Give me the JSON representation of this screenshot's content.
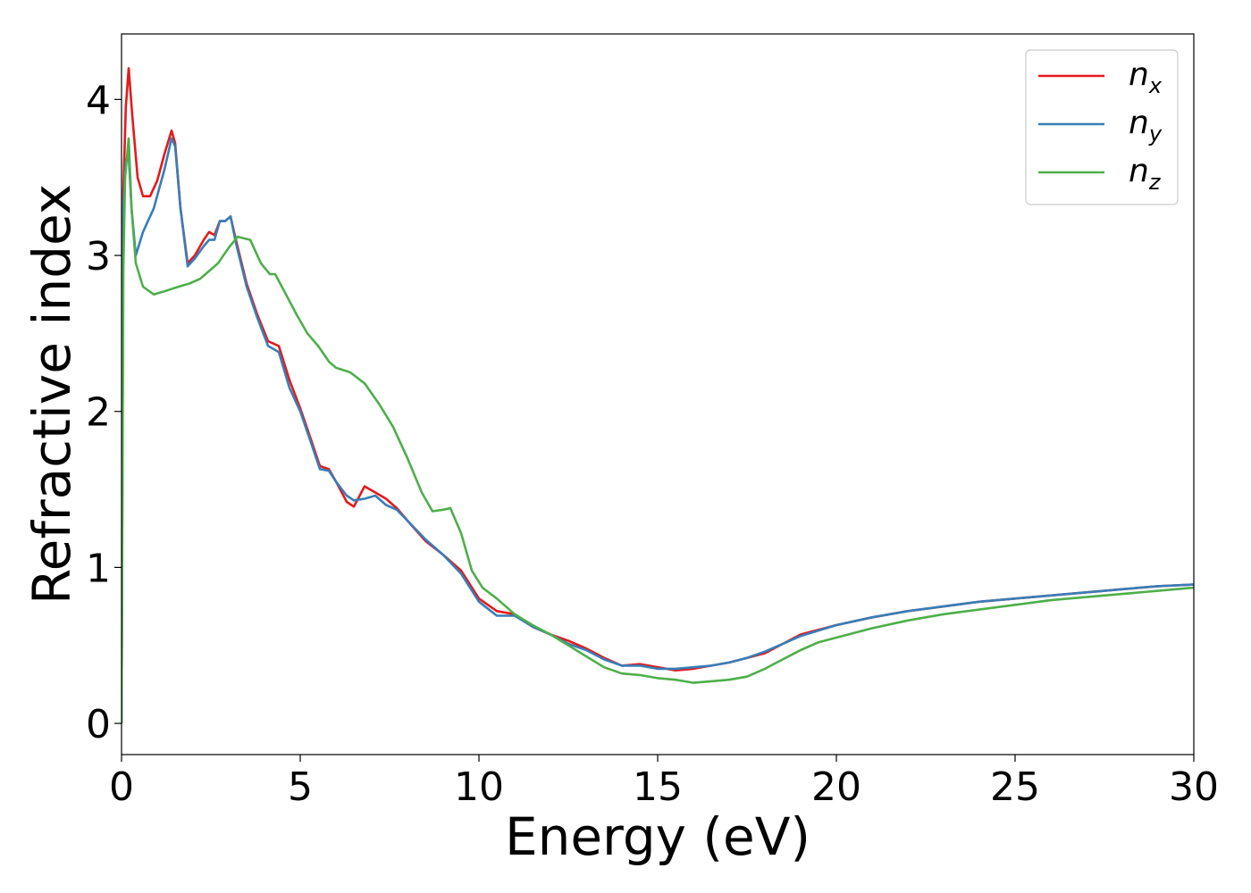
{
  "chart_data": {
    "type": "line",
    "xlabel": "Energy (eV)",
    "ylabel": "Refractive index",
    "xlim": [
      0,
      30
    ],
    "ylim": [
      -0.2,
      4.42
    ],
    "xticks": [
      "0",
      "5",
      "10",
      "15",
      "20",
      "25",
      "30"
    ],
    "yticks": [
      "0",
      "1",
      "2",
      "3",
      "4"
    ],
    "grid": false,
    "legend_position": "top-right",
    "series": [
      {
        "name": "n_x",
        "legend_base": "n",
        "legend_sub": "x",
        "color": "#e41a1c",
        "points": [
          [
            0,
            0
          ],
          [
            0.05,
            3.4
          ],
          [
            0.12,
            3.95
          ],
          [
            0.2,
            4.2
          ],
          [
            0.3,
            3.9
          ],
          [
            0.45,
            3.5
          ],
          [
            0.6,
            3.38
          ],
          [
            0.8,
            3.38
          ],
          [
            1.0,
            3.48
          ],
          [
            1.2,
            3.65
          ],
          [
            1.4,
            3.8
          ],
          [
            1.5,
            3.72
          ],
          [
            1.65,
            3.3
          ],
          [
            1.85,
            2.95
          ],
          [
            2.05,
            3.0
          ],
          [
            2.3,
            3.1
          ],
          [
            2.45,
            3.15
          ],
          [
            2.6,
            3.13
          ],
          [
            2.75,
            3.22
          ],
          [
            2.9,
            3.22
          ],
          [
            3.05,
            3.25
          ],
          [
            3.2,
            3.1
          ],
          [
            3.5,
            2.82
          ],
          [
            3.8,
            2.62
          ],
          [
            4.1,
            2.45
          ],
          [
            4.4,
            2.42
          ],
          [
            4.7,
            2.2
          ],
          [
            5.0,
            2.02
          ],
          [
            5.3,
            1.82
          ],
          [
            5.55,
            1.65
          ],
          [
            5.8,
            1.63
          ],
          [
            6.0,
            1.55
          ],
          [
            6.3,
            1.42
          ],
          [
            6.5,
            1.39
          ],
          [
            6.8,
            1.52
          ],
          [
            7.1,
            1.48
          ],
          [
            7.4,
            1.44
          ],
          [
            7.7,
            1.38
          ],
          [
            8.0,
            1.3
          ],
          [
            8.5,
            1.17
          ],
          [
            9.0,
            1.08
          ],
          [
            9.5,
            0.98
          ],
          [
            10.0,
            0.8
          ],
          [
            10.5,
            0.72
          ],
          [
            11.0,
            0.7
          ],
          [
            11.5,
            0.62
          ],
          [
            12.0,
            0.57
          ],
          [
            12.5,
            0.53
          ],
          [
            13.0,
            0.48
          ],
          [
            13.5,
            0.42
          ],
          [
            14.0,
            0.37
          ],
          [
            14.5,
            0.38
          ],
          [
            15.0,
            0.36
          ],
          [
            15.5,
            0.34
          ],
          [
            16.0,
            0.35
          ],
          [
            16.5,
            0.37
          ],
          [
            17.0,
            0.39
          ],
          [
            17.5,
            0.42
          ],
          [
            18.0,
            0.45
          ],
          [
            18.5,
            0.51
          ],
          [
            19.0,
            0.57
          ],
          [
            20.0,
            0.63
          ],
          [
            21.0,
            0.68
          ],
          [
            22.0,
            0.72
          ],
          [
            23.0,
            0.75
          ],
          [
            24.0,
            0.78
          ],
          [
            25.0,
            0.8
          ],
          [
            26.0,
            0.82
          ],
          [
            27.0,
            0.84
          ],
          [
            28.0,
            0.86
          ],
          [
            29.0,
            0.88
          ],
          [
            30.0,
            0.89
          ]
        ]
      },
      {
        "name": "n_y",
        "legend_base": "n",
        "legend_sub": "y",
        "color": "#377eb8",
        "points": [
          [
            0,
            0
          ],
          [
            0.05,
            3.3
          ],
          [
            0.12,
            3.6
          ],
          [
            0.2,
            3.65
          ],
          [
            0.28,
            3.3
          ],
          [
            0.4,
            3.0
          ],
          [
            0.6,
            3.15
          ],
          [
            0.9,
            3.3
          ],
          [
            1.2,
            3.55
          ],
          [
            1.4,
            3.75
          ],
          [
            1.5,
            3.7
          ],
          [
            1.65,
            3.3
          ],
          [
            1.85,
            2.93
          ],
          [
            2.05,
            2.98
          ],
          [
            2.3,
            3.06
          ],
          [
            2.45,
            3.1
          ],
          [
            2.6,
            3.1
          ],
          [
            2.75,
            3.22
          ],
          [
            2.9,
            3.22
          ],
          [
            3.05,
            3.25
          ],
          [
            3.2,
            3.08
          ],
          [
            3.5,
            2.8
          ],
          [
            3.8,
            2.6
          ],
          [
            4.1,
            2.42
          ],
          [
            4.4,
            2.38
          ],
          [
            4.7,
            2.15
          ],
          [
            5.0,
            2.0
          ],
          [
            5.3,
            1.8
          ],
          [
            5.55,
            1.63
          ],
          [
            5.8,
            1.62
          ],
          [
            6.0,
            1.55
          ],
          [
            6.3,
            1.46
          ],
          [
            6.5,
            1.43
          ],
          [
            6.8,
            1.44
          ],
          [
            7.1,
            1.46
          ],
          [
            7.4,
            1.4
          ],
          [
            7.7,
            1.37
          ],
          [
            8.0,
            1.3
          ],
          [
            8.5,
            1.18
          ],
          [
            9.0,
            1.08
          ],
          [
            9.5,
            0.96
          ],
          [
            10.0,
            0.78
          ],
          [
            10.5,
            0.69
          ],
          [
            11.0,
            0.69
          ],
          [
            11.5,
            0.62
          ],
          [
            12.0,
            0.57
          ],
          [
            12.5,
            0.51
          ],
          [
            13.0,
            0.47
          ],
          [
            13.5,
            0.41
          ],
          [
            14.0,
            0.37
          ],
          [
            14.5,
            0.37
          ],
          [
            15.0,
            0.35
          ],
          [
            15.5,
            0.35
          ],
          [
            16.0,
            0.36
          ],
          [
            16.5,
            0.37
          ],
          [
            17.0,
            0.39
          ],
          [
            17.5,
            0.42
          ],
          [
            18.0,
            0.46
          ],
          [
            18.5,
            0.51
          ],
          [
            19.0,
            0.56
          ],
          [
            20.0,
            0.63
          ],
          [
            21.0,
            0.68
          ],
          [
            22.0,
            0.72
          ],
          [
            23.0,
            0.75
          ],
          [
            24.0,
            0.78
          ],
          [
            25.0,
            0.8
          ],
          [
            26.0,
            0.82
          ],
          [
            27.0,
            0.84
          ],
          [
            28.0,
            0.86
          ],
          [
            29.0,
            0.88
          ],
          [
            30.0,
            0.89
          ]
        ]
      },
      {
        "name": "n_z",
        "legend_base": "n",
        "legend_sub": "z",
        "color": "#4daf4a",
        "points": [
          [
            0,
            0
          ],
          [
            0.05,
            2.9
          ],
          [
            0.1,
            3.5
          ],
          [
            0.2,
            3.75
          ],
          [
            0.28,
            3.3
          ],
          [
            0.4,
            2.95
          ],
          [
            0.6,
            2.8
          ],
          [
            0.9,
            2.75
          ],
          [
            1.2,
            2.77
          ],
          [
            1.6,
            2.8
          ],
          [
            1.9,
            2.82
          ],
          [
            2.2,
            2.85
          ],
          [
            2.45,
            2.9
          ],
          [
            2.7,
            2.95
          ],
          [
            3.0,
            3.05
          ],
          [
            3.25,
            3.12
          ],
          [
            3.6,
            3.1
          ],
          [
            3.9,
            2.95
          ],
          [
            4.15,
            2.88
          ],
          [
            4.3,
            2.88
          ],
          [
            4.6,
            2.75
          ],
          [
            4.9,
            2.62
          ],
          [
            5.2,
            2.5
          ],
          [
            5.5,
            2.42
          ],
          [
            5.8,
            2.32
          ],
          [
            6.0,
            2.28
          ],
          [
            6.4,
            2.25
          ],
          [
            6.8,
            2.18
          ],
          [
            7.2,
            2.05
          ],
          [
            7.6,
            1.9
          ],
          [
            8.0,
            1.7
          ],
          [
            8.4,
            1.48
          ],
          [
            8.7,
            1.36
          ],
          [
            9.0,
            1.37
          ],
          [
            9.2,
            1.38
          ],
          [
            9.5,
            1.22
          ],
          [
            9.8,
            0.98
          ],
          [
            10.1,
            0.87
          ],
          [
            10.5,
            0.8
          ],
          [
            11.0,
            0.7
          ],
          [
            11.5,
            0.63
          ],
          [
            12.0,
            0.57
          ],
          [
            12.5,
            0.5
          ],
          [
            13.0,
            0.43
          ],
          [
            13.5,
            0.36
          ],
          [
            14.0,
            0.32
          ],
          [
            14.5,
            0.31
          ],
          [
            15.0,
            0.29
          ],
          [
            15.5,
            0.28
          ],
          [
            16.0,
            0.26
          ],
          [
            16.5,
            0.27
          ],
          [
            17.0,
            0.28
          ],
          [
            17.5,
            0.3
          ],
          [
            18.0,
            0.35
          ],
          [
            18.5,
            0.41
          ],
          [
            19.0,
            0.47
          ],
          [
            19.5,
            0.52
          ],
          [
            20.0,
            0.55
          ],
          [
            21.0,
            0.61
          ],
          [
            22.0,
            0.66
          ],
          [
            23.0,
            0.7
          ],
          [
            24.0,
            0.73
          ],
          [
            25.0,
            0.76
          ],
          [
            26.0,
            0.79
          ],
          [
            27.0,
            0.81
          ],
          [
            28.0,
            0.83
          ],
          [
            29.0,
            0.85
          ],
          [
            30.0,
            0.87
          ]
        ]
      }
    ]
  }
}
